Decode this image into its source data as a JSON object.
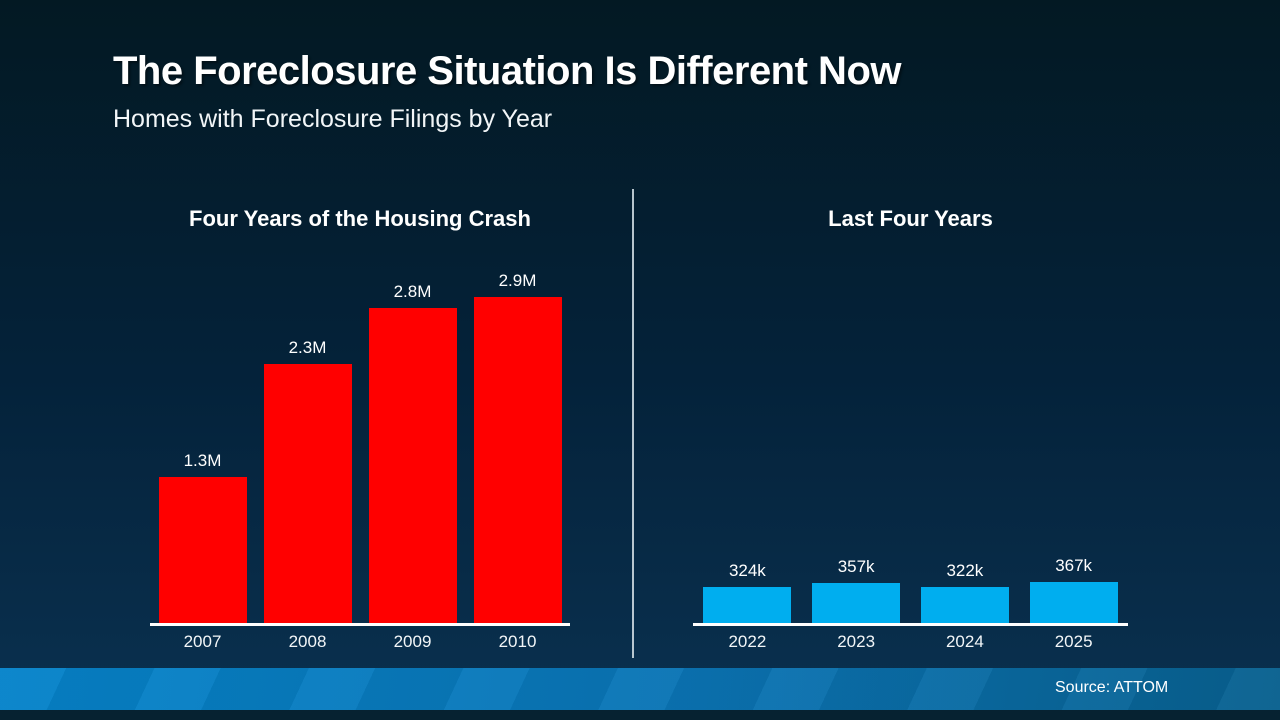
{
  "header": {
    "title": "The Foreclosure Situation Is Different Now",
    "subtitle": "Homes with Foreclosure Filings by Year"
  },
  "footer": {
    "source": "Source: ATTOM"
  },
  "colors": {
    "background_top": "#031923",
    "background_bottom": "#0A3150",
    "crash_bar": "#FF0000",
    "recent_bar": "#00AEEF",
    "axis": "#FFFFFF",
    "text": "#FFFFFF",
    "footer_left": "#0583CA",
    "footer_right": "#08608F"
  },
  "chart_data": [
    {
      "type": "bar",
      "title": "Four Years of the Housing Crash",
      "categories": [
        "2007",
        "2008",
        "2009",
        "2010"
      ],
      "values": [
        1300000,
        2300000,
        2800000,
        2900000
      ],
      "labels": [
        "1.3M",
        "2.3M",
        "2.8M",
        "2.9M"
      ],
      "bar_color": "#FF0000",
      "ylim": [
        0,
        2900000
      ],
      "grid": false,
      "legend": "none"
    },
    {
      "type": "bar",
      "title": "Last Four Years",
      "categories": [
        "2022",
        "2023",
        "2024",
        "2025"
      ],
      "values": [
        324000,
        357000,
        322000,
        367000
      ],
      "labels": [
        "324k",
        "357k",
        "322k",
        "367k"
      ],
      "bar_color": "#00AEEF",
      "ylim": [
        0,
        2900000
      ],
      "grid": false,
      "legend": "none"
    }
  ]
}
